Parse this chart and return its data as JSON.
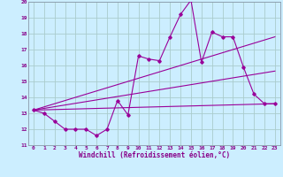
{
  "background_color": "#cceeff",
  "grid_color": "#aacccc",
  "line_color": "#990099",
  "x_label": "Windchill (Refroidissement éolien,°C)",
  "xlim": [
    -0.5,
    23.5
  ],
  "ylim": [
    11,
    20
  ],
  "yticks": [
    11,
    12,
    13,
    14,
    15,
    16,
    17,
    18,
    19,
    20
  ],
  "xticks": [
    0,
    1,
    2,
    3,
    4,
    5,
    6,
    7,
    8,
    9,
    10,
    11,
    12,
    13,
    14,
    15,
    16,
    17,
    18,
    19,
    20,
    21,
    22,
    23
  ],
  "series1_x": [
    0,
    1,
    2,
    3,
    4,
    5,
    6,
    7,
    8,
    9,
    10,
    11,
    12,
    13,
    14,
    15,
    16,
    17,
    18,
    19,
    20,
    21,
    22,
    23
  ],
  "series1_y": [
    13.2,
    13.0,
    12.5,
    12.0,
    12.0,
    12.0,
    11.6,
    12.0,
    13.8,
    12.9,
    16.6,
    16.4,
    16.3,
    17.8,
    19.2,
    20.1,
    16.2,
    18.1,
    17.8,
    17.8,
    15.9,
    14.2,
    13.6,
    13.6
  ],
  "series2_x": [
    0,
    23
  ],
  "series2_y": [
    13.2,
    17.8
  ],
  "series3_x": [
    0,
    23
  ],
  "series3_y": [
    13.2,
    13.6
  ],
  "series4_x": [
    0,
    23
  ],
  "series4_y": [
    13.2,
    15.65
  ]
}
